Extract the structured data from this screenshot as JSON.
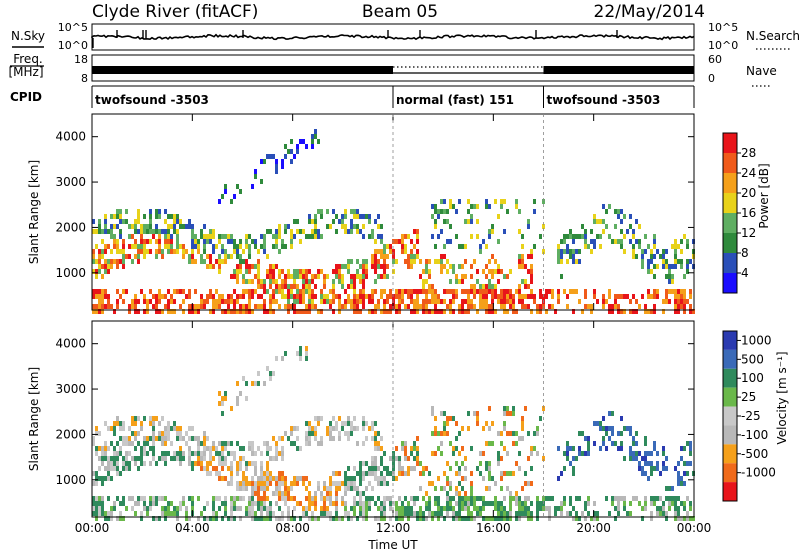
{
  "header": {
    "station": "Clyde River (fitACF)",
    "beam": "Beam 05",
    "date": "22/May/2014"
  },
  "colors": {
    "power_scale": [
      "#1a0dff",
      "#2a4fb8",
      "#2f8a3c",
      "#5fae62",
      "#e8d21a",
      "#f5a01a",
      "#f05a1a",
      "#e8141a"
    ],
    "velocity_scale": [
      "#e8141a",
      "#f06a1a",
      "#f5a01a",
      "#b8b8b8",
      "#c8c8c8",
      "#6ab84a",
      "#2f8a5c",
      "#3a6ab8",
      "#2a3ab0"
    ],
    "search_noise_dots": "#000000"
  },
  "top_panels": {
    "nsky_label": "N.Sky",
    "nsky_ticks": [
      "10^5",
      "10^0"
    ],
    "nsearch_label": "N.Search",
    "nsearch_ticks": [
      "10^5",
      "10^0"
    ],
    "freq_label": "Freq.",
    "freq_unit": "[MHz]",
    "freq_ticks": [
      "18",
      "8"
    ],
    "nave_label": "Nave",
    "nave_ticks": [
      "60",
      "0"
    ],
    "cpid_label": "CPID",
    "cpid_segments": [
      {
        "label": "twofsound -3503",
        "start_h": 0,
        "end_h": 12
      },
      {
        "label": "normal (fast) 151",
        "start_h": 12,
        "end_h": 18
      },
      {
        "label": "twofsound -3503",
        "start_h": 18,
        "end_h": 24
      }
    ]
  },
  "chart_data": [
    {
      "type": "heatmap",
      "title": "Power",
      "xlabel": "",
      "ylabel": "Slant Range [km]",
      "x_range_h": [
        0,
        24
      ],
      "x_ticks": [
        "00:00",
        "04:00",
        "08:00",
        "12:00",
        "16:00",
        "20:00",
        "00:00"
      ],
      "ylim": [
        180,
        4500
      ],
      "y_ticks": [
        1000,
        2000,
        3000,
        4000
      ],
      "colorbar_label": "Power [dB]",
      "colorbar_ticks": [
        4,
        8,
        12,
        16,
        20,
        24,
        28
      ]
    },
    {
      "type": "heatmap",
      "title": "Velocity",
      "xlabel": "Time UT",
      "ylabel": "Slant Range [km]",
      "x_range_h": [
        0,
        24
      ],
      "x_ticks": [
        "00:00",
        "04:00",
        "08:00",
        "12:00",
        "16:00",
        "20:00",
        "00:00"
      ],
      "ylim": [
        180,
        4500
      ],
      "y_ticks": [
        1000,
        2000,
        3000,
        4000
      ],
      "colorbar_label": "Velocity [m s⁻¹]",
      "colorbar_ticks": [
        1000,
        500,
        100,
        25,
        -25,
        -100,
        -500,
        -1000
      ]
    }
  ]
}
